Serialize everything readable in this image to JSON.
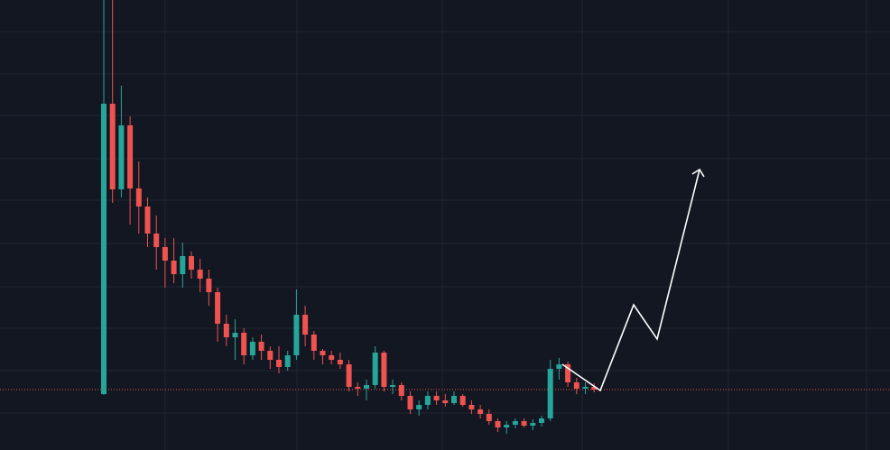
{
  "chart_data": {
    "type": "candlestick",
    "open": [
      62,
      384,
      289,
      360,
      290,
      270,
      240,
      225,
      210,
      195,
      215,
      200,
      190,
      175,
      140,
      125,
      130,
      105,
      120,
      110,
      100,
      92,
      105,
      150,
      128,
      110,
      105,
      100,
      95,
      70,
      68,
      72,
      108,
      70,
      72,
      60,
      45,
      50,
      60,
      55,
      52,
      60,
      50,
      45,
      40,
      32,
      25,
      28,
      32,
      27,
      30,
      35,
      90,
      95,
      75,
      68,
      70
    ],
    "high": [
      499,
      499,
      404,
      370,
      320,
      280,
      260,
      235,
      235,
      230,
      220,
      212,
      200,
      180,
      150,
      145,
      135,
      125,
      128,
      115,
      115,
      110,
      178,
      160,
      132,
      112,
      110,
      108,
      100,
      75,
      78,
      115,
      110,
      78,
      75,
      65,
      55,
      65,
      65,
      62,
      65,
      62,
      55,
      50,
      45,
      35,
      32,
      35,
      35,
      34,
      38,
      100,
      102,
      98,
      80,
      75,
      74
    ],
    "low": [
      61,
      274,
      280,
      250,
      240,
      225,
      200,
      180,
      185,
      180,
      190,
      175,
      160,
      120,
      115,
      100,
      95,
      100,
      100,
      90,
      85,
      88,
      100,
      115,
      100,
      95,
      95,
      90,
      65,
      60,
      55,
      68,
      65,
      62,
      55,
      40,
      38,
      45,
      50,
      48,
      50,
      48,
      40,
      35,
      28,
      20,
      18,
      24,
      25,
      22,
      26,
      32,
      78,
      70,
      62,
      62,
      64
    ],
    "close": [
      384,
      289,
      360,
      290,
      270,
      240,
      225,
      210,
      195,
      215,
      200,
      190,
      175,
      140,
      125,
      130,
      105,
      120,
      110,
      100,
      92,
      105,
      150,
      128,
      110,
      105,
      100,
      95,
      70,
      68,
      72,
      108,
      70,
      72,
      60,
      45,
      50,
      60,
      55,
      52,
      60,
      50,
      45,
      40,
      32,
      25,
      28,
      32,
      27,
      30,
      35,
      90,
      95,
      75,
      68,
      70,
      67
    ],
    "up_color": "#26a69a",
    "down_color": "#ef5350",
    "ylim": [
      0,
      499
    ],
    "last_price_line": true
  }
}
